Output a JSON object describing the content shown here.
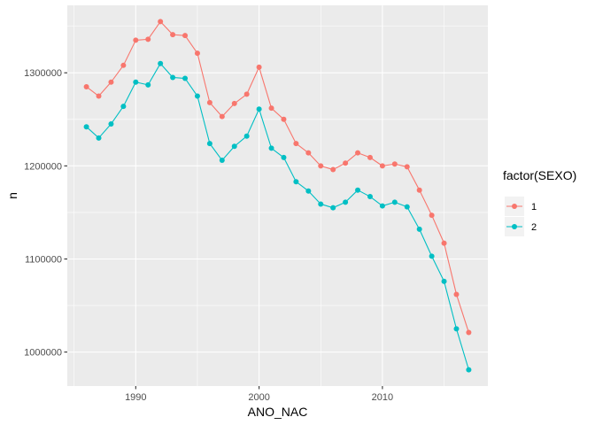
{
  "chart_data": {
    "type": "line",
    "title": "",
    "xlabel": "ANO_NAC",
    "ylabel": "n",
    "xlim": [
      1984.45,
      2018.55
    ],
    "ylim": [
      963500,
      1372500
    ],
    "x_ticks": [
      1990,
      2000,
      2010
    ],
    "x_tick_labels": [
      "1990",
      "2000",
      "2010"
    ],
    "y_ticks": [
      1000000,
      1100000,
      1200000,
      1300000
    ],
    "y_tick_labels": [
      "1000000",
      "1100000",
      "1200000",
      "1300000"
    ],
    "grid": true,
    "legend": {
      "title": "factor(SEXO)",
      "position": "right"
    },
    "x": [
      1986,
      1987,
      1988,
      1989,
      1990,
      1991,
      1992,
      1993,
      1994,
      1995,
      1996,
      1997,
      1998,
      1999,
      2000,
      2001,
      2002,
      2003,
      2004,
      2005,
      2006,
      2007,
      2008,
      2009,
      2010,
      2011,
      2012,
      2013,
      2014,
      2015,
      2016,
      2017
    ],
    "series": [
      {
        "name": "1",
        "color": "#F8766D",
        "values": [
          1285000,
          1275000,
          1290000,
          1308000,
          1335000,
          1336000,
          1355000,
          1341000,
          1340000,
          1321000,
          1268000,
          1253000,
          1267000,
          1277000,
          1306000,
          1262000,
          1250000,
          1224000,
          1214000,
          1200000,
          1196000,
          1203000,
          1214000,
          1209000,
          1200000,
          1202000,
          1199000,
          1174000,
          1147000,
          1117000,
          1062000,
          1021000
        ]
      },
      {
        "name": "2",
        "color": "#00BFC4",
        "values": [
          1242000,
          1230000,
          1245000,
          1264000,
          1290000,
          1287000,
          1310000,
          1295000,
          1294000,
          1275000,
          1224000,
          1206000,
          1221000,
          1232000,
          1261000,
          1219000,
          1209000,
          1183000,
          1173000,
          1159000,
          1155000,
          1161000,
          1174000,
          1167000,
          1157000,
          1161000,
          1156000,
          1132000,
          1103000,
          1076000,
          1025000,
          981000
        ]
      }
    ]
  }
}
